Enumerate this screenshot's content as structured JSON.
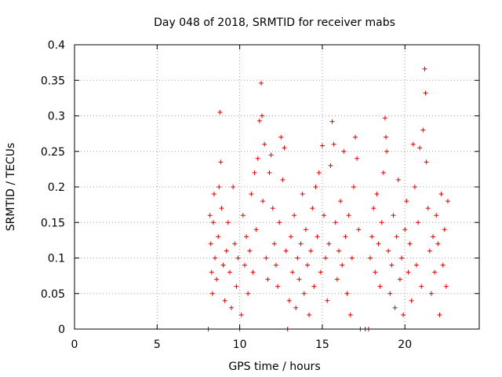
{
  "chart_data": {
    "type": "scatter",
    "title": "Day 048 of 2018, SRMTID for receiver mabs",
    "xlabel": "GPS time / hours",
    "ylabel": "SRMTID / TECUs",
    "xlim": [
      0,
      24.5
    ],
    "ylim": [
      0,
      0.4
    ],
    "grid": true,
    "marker": "plus",
    "color": "#dd0000",
    "x_ticks": [
      0,
      5,
      10,
      15,
      20
    ],
    "x_tick_labels": [
      "0",
      "5",
      "10",
      "15",
      "20"
    ],
    "y_ticks": [
      0,
      0.05,
      0.1,
      0.15,
      0.2,
      0.25,
      0.3,
      0.35,
      0.4
    ],
    "y_tick_labels": [
      "0",
      "0.05",
      "0.1",
      "0.15",
      "0.2",
      "0.25",
      "0.3",
      "0.35",
      "0.4"
    ],
    "series": [
      {
        "name": "SRMTID",
        "points": [
          [
            8.1,
            0.0
          ],
          [
            8.2,
            0.16
          ],
          [
            8.25,
            0.12
          ],
          [
            8.3,
            0.08
          ],
          [
            8.35,
            0.05
          ],
          [
            8.4,
            0.15
          ],
          [
            8.45,
            0.19
          ],
          [
            8.5,
            0.1
          ],
          [
            8.6,
            0.07
          ],
          [
            8.7,
            0.13
          ],
          [
            8.75,
            0.2
          ],
          [
            8.8,
            0.305
          ],
          [
            8.85,
            0.235
          ],
          [
            8.9,
            0.17
          ],
          [
            9.0,
            0.09
          ],
          [
            9.1,
            0.04
          ],
          [
            9.2,
            0.11
          ],
          [
            9.3,
            0.15
          ],
          [
            9.4,
            0.08
          ],
          [
            9.5,
            0.03
          ],
          [
            9.6,
            0.2
          ],
          [
            9.7,
            0.12
          ],
          [
            9.8,
            0.06
          ],
          [
            9.9,
            0.1
          ],
          [
            10.0,
            0.0
          ],
          [
            10.1,
            0.02
          ],
          [
            10.2,
            0.16
          ],
          [
            10.3,
            0.09
          ],
          [
            10.4,
            0.13
          ],
          [
            10.5,
            0.05
          ],
          [
            10.6,
            0.11
          ],
          [
            10.7,
            0.19
          ],
          [
            10.8,
            0.08
          ],
          [
            10.9,
            0.22
          ],
          [
            11.0,
            0.14
          ],
          [
            11.1,
            0.24
          ],
          [
            11.2,
            0.293
          ],
          [
            11.3,
            0.346
          ],
          [
            11.35,
            0.3
          ],
          [
            11.4,
            0.18
          ],
          [
            11.5,
            0.26
          ],
          [
            11.6,
            0.1
          ],
          [
            11.7,
            0.07
          ],
          [
            11.8,
            0.22
          ],
          [
            11.9,
            0.245
          ],
          [
            12.0,
            0.17
          ],
          [
            12.1,
            0.12
          ],
          [
            12.2,
            0.09
          ],
          [
            12.3,
            0.06
          ],
          [
            12.4,
            0.15
          ],
          [
            12.5,
            0.27
          ],
          [
            12.6,
            0.21
          ],
          [
            12.7,
            0.255
          ],
          [
            12.8,
            0.11
          ],
          [
            12.9,
            0.0
          ],
          [
            13.0,
            0.04
          ],
          [
            13.1,
            0.13
          ],
          [
            13.2,
            0.08
          ],
          [
            13.3,
            0.16
          ],
          [
            13.4,
            0.03
          ],
          [
            13.5,
            0.1
          ],
          [
            13.6,
            0.07
          ],
          [
            13.7,
            0.12
          ],
          [
            13.8,
            0.19
          ],
          [
            13.9,
            0.05
          ],
          [
            14.0,
            0.14
          ],
          [
            14.1,
            0.09
          ],
          [
            14.2,
            0.02
          ],
          [
            14.3,
            0.11
          ],
          [
            14.4,
            0.17
          ],
          [
            14.5,
            0.06
          ],
          [
            14.6,
            0.2
          ],
          [
            14.7,
            0.13
          ],
          [
            14.8,
            0.22
          ],
          [
            14.9,
            0.08
          ],
          [
            15.0,
            0.258
          ],
          [
            15.1,
            0.16
          ],
          [
            15.2,
            0.1
          ],
          [
            15.3,
            0.04
          ],
          [
            15.4,
            0.12
          ],
          [
            15.5,
            0.23
          ],
          [
            15.6,
            0.292
          ],
          [
            15.7,
            0.26
          ],
          [
            15.8,
            0.15
          ],
          [
            15.9,
            0.07
          ],
          [
            16.0,
            0.11
          ],
          [
            16.1,
            0.18
          ],
          [
            16.2,
            0.09
          ],
          [
            16.3,
            0.25
          ],
          [
            16.4,
            0.13
          ],
          [
            16.5,
            0.05
          ],
          [
            16.6,
            0.16
          ],
          [
            16.7,
            0.02
          ],
          [
            16.8,
            0.1
          ],
          [
            16.9,
            0.2
          ],
          [
            17.0,
            0.27
          ],
          [
            17.1,
            0.24
          ],
          [
            17.2,
            0.14
          ],
          [
            17.3,
            0.0
          ],
          [
            17.6,
            0.0
          ],
          [
            17.8,
            0.0
          ],
          [
            17.9,
            0.1
          ],
          [
            18.0,
            0.13
          ],
          [
            18.1,
            0.17
          ],
          [
            18.2,
            0.08
          ],
          [
            18.3,
            0.19
          ],
          [
            18.4,
            0.12
          ],
          [
            18.5,
            0.06
          ],
          [
            18.6,
            0.15
          ],
          [
            18.7,
            0.22
          ],
          [
            18.8,
            0.297
          ],
          [
            18.85,
            0.27
          ],
          [
            18.9,
            0.25
          ],
          [
            19.0,
            0.11
          ],
          [
            19.1,
            0.05
          ],
          [
            19.2,
            0.09
          ],
          [
            19.3,
            0.16
          ],
          [
            19.4,
            0.03
          ],
          [
            19.5,
            0.13
          ],
          [
            19.6,
            0.21
          ],
          [
            19.7,
            0.07
          ],
          [
            19.8,
            0.1
          ],
          [
            19.9,
            0.02
          ],
          [
            20.0,
            0.14
          ],
          [
            20.1,
            0.18
          ],
          [
            20.2,
            0.08
          ],
          [
            20.3,
            0.12
          ],
          [
            20.4,
            0.04
          ],
          [
            20.5,
            0.26
          ],
          [
            20.6,
            0.2
          ],
          [
            20.7,
            0.09
          ],
          [
            20.8,
            0.15
          ],
          [
            20.9,
            0.255
          ],
          [
            21.0,
            0.06
          ],
          [
            21.1,
            0.28
          ],
          [
            21.2,
            0.366
          ],
          [
            21.25,
            0.332
          ],
          [
            21.3,
            0.235
          ],
          [
            21.4,
            0.17
          ],
          [
            21.5,
            0.11
          ],
          [
            21.6,
            0.05
          ],
          [
            21.7,
            0.13
          ],
          [
            21.8,
            0.08
          ],
          [
            21.9,
            0.16
          ],
          [
            22.0,
            0.12
          ],
          [
            22.1,
            0.02
          ],
          [
            22.2,
            0.19
          ],
          [
            22.3,
            0.09
          ],
          [
            22.4,
            0.14
          ],
          [
            22.5,
            0.06
          ],
          [
            22.6,
            0.18
          ]
        ]
      }
    ]
  }
}
